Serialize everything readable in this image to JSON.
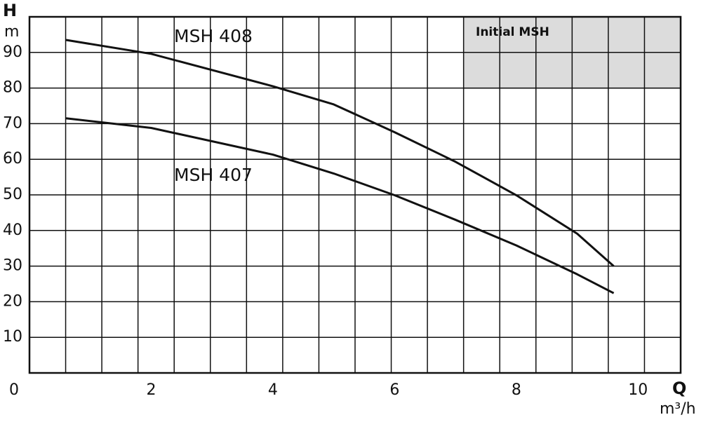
{
  "chart_data": {
    "type": "line",
    "y_axis_label": "H",
    "y_axis_unit": "m",
    "x_axis_label": "Q",
    "x_axis_unit": "m³/h",
    "annotation": "Initial MSH",
    "x": [
      0.6,
      2,
      4,
      5,
      6,
      7,
      8,
      9,
      9.6
    ],
    "series": [
      {
        "name": "MSH 408",
        "color": "#111111",
        "values": [
          93.5,
          89.6,
          80.5,
          75.4,
          67.6,
          59.3,
          49.9,
          39.1,
          30
        ]
      },
      {
        "name": "MSH 407",
        "color": "#111111",
        "values": [
          71.5,
          68.8,
          61.3,
          56,
          49.9,
          43,
          35.8,
          27.7,
          22.4
        ]
      }
    ],
    "xlim": [
      0,
      10.7
    ],
    "xticks": [
      0,
      2,
      4,
      6,
      8,
      10
    ],
    "ylim": [
      0,
      100
    ],
    "yticks": [
      10,
      20,
      30,
      40,
      50,
      60,
      70,
      80,
      90
    ],
    "grid": true
  }
}
